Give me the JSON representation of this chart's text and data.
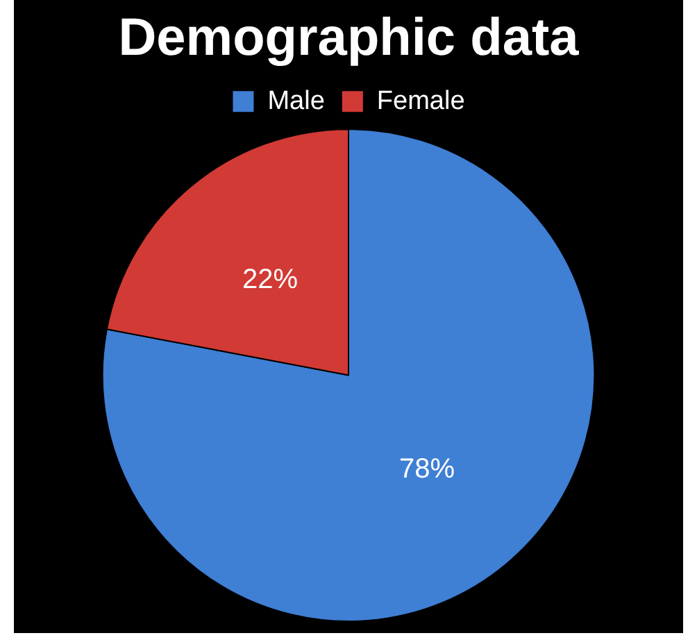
{
  "chart_data": {
    "type": "pie",
    "title": "Demographic data",
    "categories": [
      "Male",
      "Female"
    ],
    "values": [
      78,
      22
    ],
    "colors": [
      "#3f7fd4",
      "#d23a35"
    ],
    "value_labels": [
      "78%",
      "22%"
    ],
    "legend": "top"
  }
}
